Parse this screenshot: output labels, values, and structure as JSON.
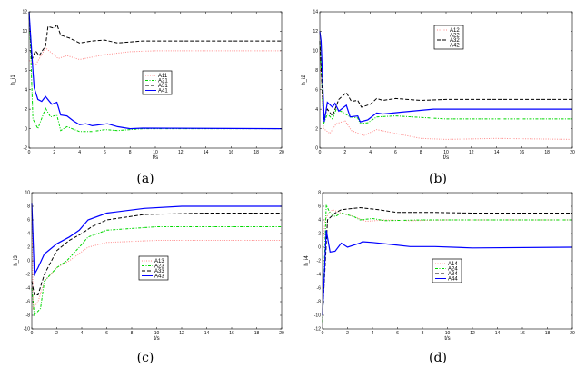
{
  "chart_data": [
    {
      "type": "line",
      "caption": "(a)",
      "xlabel": "t/s",
      "ylabel": "h_i1",
      "xlim": [
        0,
        20
      ],
      "ylim": [
        -2,
        12
      ],
      "xticks": [
        0,
        2,
        4,
        6,
        8,
        10,
        12,
        14,
        16,
        18,
        20
      ],
      "yticks": [
        -2,
        0,
        2,
        4,
        6,
        8,
        10,
        12
      ],
      "legend": "center",
      "series": [
        {
          "name": "A11",
          "style": "dotted",
          "color": "#ff8a8a",
          "x": [
            0,
            0.5,
            1.3,
            2.3,
            3,
            4,
            6,
            8,
            10,
            20
          ],
          "y": [
            7,
            6.5,
            8.3,
            7.2,
            7.5,
            7.1,
            7.6,
            7.9,
            8,
            8
          ]
        },
        {
          "name": "A21",
          "style": "dashdot",
          "color": "#00d800",
          "x": [
            0,
            0.1,
            0.3,
            0.7,
            1.3,
            1.7,
            2.2,
            2.5,
            3,
            4,
            5,
            6,
            7,
            9,
            20
          ],
          "y": [
            12,
            9,
            1,
            0,
            2.1,
            1.2,
            1.4,
            -0.2,
            0.2,
            -0.3,
            -0.3,
            -0.1,
            -0.2,
            0,
            0
          ]
        },
        {
          "name": "A31",
          "style": "dashed",
          "color": "#000000",
          "x": [
            0,
            0.2,
            0.5,
            0.8,
            1.3,
            1.5,
            2,
            2.2,
            2.5,
            3.2,
            4,
            5,
            6,
            7,
            9,
            20
          ],
          "y": [
            12,
            7,
            8,
            7.5,
            8.5,
            10.5,
            10.3,
            10.7,
            9.6,
            9.3,
            8.8,
            9,
            9.1,
            8.8,
            9,
            9
          ]
        },
        {
          "name": "A41",
          "style": "solid",
          "color": "#0000ff",
          "x": [
            0,
            0.3,
            0.4,
            0.7,
            1,
            1.3,
            1.8,
            2.2,
            2.5,
            3,
            3.5,
            4,
            4.5,
            5,
            6.2,
            7,
            8,
            9,
            20
          ],
          "y": [
            12,
            6,
            4.2,
            3,
            2.8,
            3.3,
            2.5,
            2.7,
            1.4,
            1.3,
            0.8,
            0.4,
            0.5,
            0.3,
            0.5,
            0.2,
            0,
            0.05,
            0
          ]
        }
      ]
    },
    {
      "type": "line",
      "caption": "(b)",
      "xlabel": "t/s",
      "ylabel": "h_i2",
      "xlim": [
        0,
        20
      ],
      "ylim": [
        0,
        14
      ],
      "xticks": [
        0,
        2,
        4,
        6,
        8,
        10,
        12,
        14,
        16,
        18,
        20
      ],
      "yticks": [
        0,
        2,
        4,
        6,
        8,
        10,
        12,
        14
      ],
      "legend": "top-center",
      "series": [
        {
          "name": "A12",
          "style": "dotted",
          "color": "#ff8a8a",
          "x": [
            0,
            0.3,
            0.8,
            1.3,
            2,
            2.5,
            3.5,
            4.5,
            6,
            8,
            10,
            14,
            20
          ],
          "y": [
            10,
            2,
            1.5,
            2.5,
            2.8,
            1.8,
            1.3,
            1.9,
            1.5,
            1,
            0.9,
            1,
            0.9
          ]
        },
        {
          "name": "A22",
          "style": "dashdot",
          "color": "#00d800",
          "x": [
            0,
            0.3,
            0.6,
            1,
            1.3,
            1.8,
            2.4,
            3,
            3.2,
            3.8,
            4.5,
            6,
            10,
            20
          ],
          "y": [
            11,
            2.5,
            3.5,
            3,
            4,
            3.7,
            3.2,
            3.1,
            2.5,
            2.6,
            3.2,
            3.3,
            3,
            3
          ]
        },
        {
          "name": "A32",
          "style": "dashed",
          "color": "#000000",
          "x": [
            0,
            0.3,
            0.6,
            1,
            1.5,
            2.1,
            2.5,
            3,
            3.3,
            4,
            4.5,
            5,
            6,
            8,
            10,
            20
          ],
          "y": [
            11,
            3,
            4,
            3.3,
            5,
            5.7,
            4.8,
            4.9,
            4.2,
            4.5,
            5.1,
            4.9,
            5.1,
            4.9,
            5,
            5
          ]
        },
        {
          "name": "A42",
          "style": "solid",
          "color": "#0000ff",
          "x": [
            0,
            0.1,
            0.35,
            0.6,
            1,
            1.2,
            1.5,
            2.1,
            2.4,
            3,
            3.2,
            3.8,
            4.5,
            5,
            6.5,
            9,
            20
          ],
          "y": [
            12,
            11,
            2.7,
            4.7,
            4.2,
            4.6,
            3.8,
            4.4,
            3.2,
            3.3,
            2.7,
            2.9,
            3.6,
            3.5,
            3.7,
            4,
            4
          ]
        }
      ]
    },
    {
      "type": "line",
      "caption": "(c)",
      "xlabel": "t/s",
      "ylabel": "h_i3",
      "xlim": [
        0,
        20
      ],
      "ylim": [
        -10,
        10
      ],
      "xticks": [
        0,
        2,
        4,
        6,
        8,
        10,
        12,
        14,
        16,
        18,
        20
      ],
      "yticks": [
        -10,
        -8,
        -6,
        -4,
        -2,
        0,
        2,
        4,
        6,
        8,
        10
      ],
      "legend": "center",
      "series": [
        {
          "name": "A13",
          "style": "dotted",
          "color": "#ff8a8a",
          "x": [
            0,
            0.1,
            0.5,
            1,
            2,
            3,
            4.5,
            6,
            10,
            20
          ],
          "y": [
            8,
            -7,
            -6,
            -3,
            -1,
            0,
            2,
            2.7,
            3,
            3
          ]
        },
        {
          "name": "A23",
          "style": "dashdot",
          "color": "#00d800",
          "x": [
            0,
            0.2,
            0.7,
            1,
            2,
            2.8,
            3.8,
            4.5,
            6,
            10,
            20
          ],
          "y": [
            -4,
            -8,
            -7,
            -3,
            -1,
            0,
            2,
            3.5,
            4.5,
            5,
            5
          ]
        },
        {
          "name": "A33",
          "style": "dashed",
          "color": "#000000",
          "x": [
            0,
            0.2,
            0.5,
            1,
            2,
            3,
            4,
            4.8,
            6,
            9,
            14,
            20
          ],
          "y": [
            -3,
            -5,
            -5,
            -2,
            1.5,
            3,
            4,
            5,
            6,
            6.8,
            7,
            7
          ]
        },
        {
          "name": "A43",
          "style": "solid",
          "color": "#0000ff",
          "x": [
            0,
            0.2,
            0.5,
            1,
            2,
            3,
            3.8,
            4.5,
            6,
            9,
            12,
            20
          ],
          "y": [
            8.5,
            -2,
            -1,
            1,
            2.5,
            3.5,
            4.5,
            6,
            7,
            7.7,
            8,
            8
          ]
        }
      ]
    },
    {
      "type": "line",
      "caption": "(d)",
      "xlabel": "t/s",
      "ylabel": "h_i4",
      "xlim": [
        0,
        20
      ],
      "ylim": [
        -12,
        8
      ],
      "xticks": [
        0,
        2,
        4,
        6,
        8,
        10,
        12,
        14,
        16,
        18,
        20
      ],
      "yticks": [
        -12,
        -10,
        -8,
        -6,
        -4,
        -2,
        0,
        2,
        4,
        6,
        8
      ],
      "legend": "center",
      "series": [
        {
          "name": "A14",
          "style": "dotted",
          "color": "#ff8a8a",
          "x": [
            0,
            0.2,
            0.5,
            0.8,
            1.5,
            2.5,
            3.5,
            5,
            7,
            10,
            20
          ],
          "y": [
            0,
            4,
            5,
            5.5,
            5,
            4.5,
            3.8,
            4,
            3.9,
            4,
            4
          ]
        },
        {
          "name": "A24",
          "style": "dashdot",
          "color": "#00d800",
          "x": [
            0,
            0.3,
            0.6,
            1,
            1.5,
            2.5,
            3,
            4,
            5,
            8,
            20
          ],
          "y": [
            -11,
            6.2,
            5,
            4.5,
            5,
            4.5,
            4,
            4.2,
            3.9,
            4,
            4
          ]
        },
        {
          "name": "A34",
          "style": "dashed",
          "color": "#000000",
          "x": [
            0,
            0.4,
            1,
            1.5,
            3,
            4.5,
            6,
            9,
            12,
            20
          ],
          "y": [
            -10,
            4,
            5,
            5.5,
            5.8,
            5.5,
            5.1,
            5.1,
            5,
            5
          ]
        },
        {
          "name": "A44",
          "style": "solid",
          "color": "#0000ff",
          "x": [
            0,
            0.3,
            0.6,
            1,
            1.5,
            2,
            3,
            3.2,
            4,
            5.5,
            7,
            9,
            12,
            20
          ],
          "y": [
            -10,
            2.5,
            -0.7,
            -0.6,
            0.6,
            0,
            0.6,
            0.8,
            0.7,
            0.4,
            0.1,
            0.1,
            -0.1,
            0
          ]
        }
      ]
    }
  ]
}
